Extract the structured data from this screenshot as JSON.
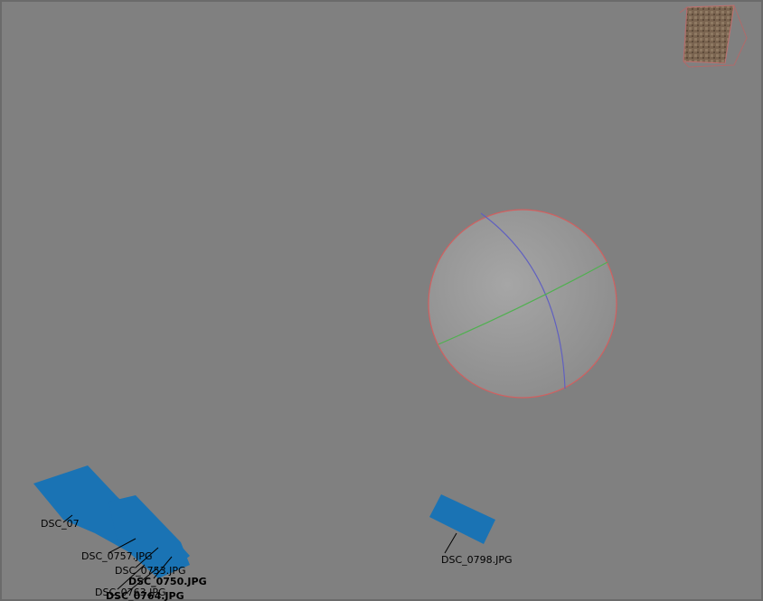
{
  "viewport": {
    "camera_labels": [
      "DSC_07",
      "DSC_0757.JPG",
      "DSC_0753.JPG",
      "DSC_0750.JPG",
      "DSC_0763.JPG",
      "DSC_0764.JPG",
      "DSC_0798.JPG"
    ]
  }
}
